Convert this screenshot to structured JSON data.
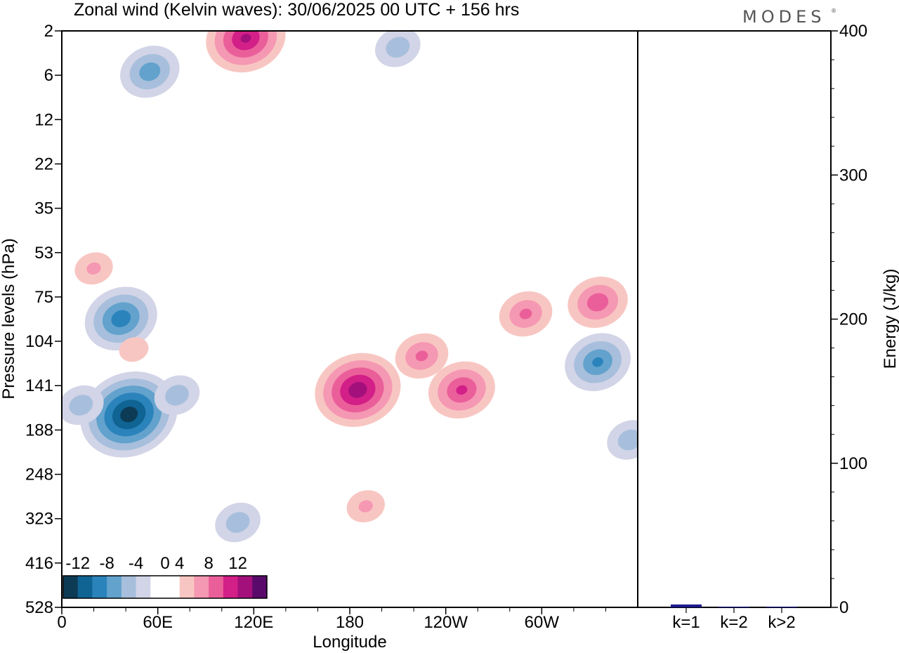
{
  "page": {
    "title": "Zonal wind (Kelvin waves):  30/06/2025  00 UTC  + 156 hrs",
    "brand": "MODES",
    "brand_mark": "®"
  },
  "chart_data": [
    {
      "type": "heatmap",
      "xlabel": "Longitude",
      "ylabel": "Pressure levels (hPa)",
      "x_ticks": [
        "0",
        "60E",
        "120E",
        "180",
        "120W",
        "60W"
      ],
      "x_tick_values": [
        0,
        60,
        120,
        180,
        240,
        300
      ],
      "xlim": [
        0,
        360
      ],
      "y_ticks": [
        "2",
        "6",
        "12",
        "22",
        "35",
        "53",
        "75",
        "104",
        "141",
        "188",
        "248",
        "323",
        "416",
        "528"
      ],
      "y_axis": "log-pressure, inverted",
      "colorbar": {
        "labels": [
          "-12",
          "-8",
          "-4",
          "0",
          "4",
          "8",
          "12"
        ],
        "label_values": [
          -12,
          -8,
          -4,
          0,
          4,
          8,
          12
        ],
        "levels": [
          -14,
          -12,
          -10,
          -8,
          -6,
          -4,
          -2,
          2,
          4,
          6,
          8,
          10,
          12,
          14
        ],
        "colors": [
          "#0d3b55",
          "#0f6494",
          "#2b83bb",
          "#62a2cd",
          "#a7bfdc",
          "#d2d4e7",
          "#ffffff",
          "#ffffff",
          "#f8c6c2",
          "#f598b3",
          "#ea5f9a",
          "#d31f88",
          "#a3107b",
          "#5a0a6b"
        ]
      },
      "features": [
        {
          "kind": "easterly",
          "lon": 42,
          "p": 170,
          "peak": -13
        },
        {
          "kind": "easterly",
          "lon": 37,
          "p": 88,
          "peak": -9
        },
        {
          "kind": "easterly",
          "lon": 12,
          "p": 160,
          "peak": -5
        },
        {
          "kind": "easterly",
          "lon": 72,
          "p": 150,
          "peak": -5
        },
        {
          "kind": "easterly",
          "lon": 110,
          "p": 330,
          "peak": -5
        },
        {
          "kind": "easterly",
          "lon": 335,
          "p": 120,
          "peak": -8
        },
        {
          "kind": "easterly",
          "lon": 355,
          "p": 200,
          "peak": -5
        },
        {
          "kind": "easterly",
          "lon": 55,
          "p": 5.5,
          "peak": -7
        },
        {
          "kind": "easterly",
          "lon": 210,
          "p": 3,
          "peak": -5
        },
        {
          "kind": "westerly",
          "lon": 185,
          "p": 145,
          "peak": 11
        },
        {
          "kind": "westerly",
          "lon": 250,
          "p": 145,
          "peak": 8
        },
        {
          "kind": "westerly",
          "lon": 225,
          "p": 115,
          "peak": 6
        },
        {
          "kind": "westerly",
          "lon": 290,
          "p": 85,
          "peak": 6
        },
        {
          "kind": "westerly",
          "lon": 335,
          "p": 78,
          "peak": 7
        },
        {
          "kind": "westerly",
          "lon": 190,
          "p": 300,
          "peak": 4
        },
        {
          "kind": "westerly",
          "lon": 115,
          "p": 2.4,
          "peak": 10
        },
        {
          "kind": "westerly",
          "lon": 20,
          "p": 60,
          "peak": 4
        },
        {
          "kind": "westerly",
          "lon": 45,
          "p": 110,
          "peak": 3
        }
      ]
    },
    {
      "type": "bar",
      "ylabel": "Energy (J/kg)",
      "categories": [
        "k=1",
        "k=2",
        "k>2"
      ],
      "values": [
        2,
        0.5,
        0.5
      ],
      "ylim": [
        0,
        400
      ],
      "y_ticks": [
        "0",
        "100",
        "200",
        "300",
        "400"
      ],
      "y_tick_values": [
        0,
        100,
        200,
        300,
        400
      ],
      "bar_color": "#1c1a8c"
    }
  ]
}
